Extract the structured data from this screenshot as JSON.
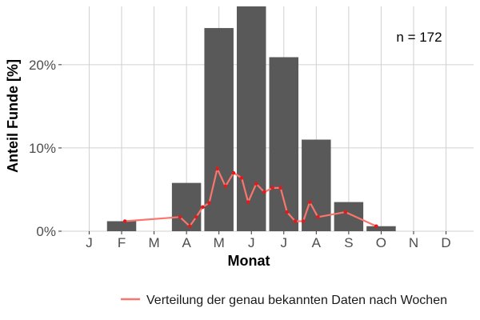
{
  "chart_data": {
    "type": "bar",
    "xlabel": "Monat",
    "ylabel": "Anteil Funde [%]",
    "categories": [
      "J",
      "F",
      "M",
      "A",
      "M",
      "J",
      "J",
      "A",
      "S",
      "O",
      "N",
      "D"
    ],
    "ylim": [
      0,
      27
    ],
    "yticks": [
      0,
      10,
      20
    ],
    "ytick_labels": [
      "0%",
      "10%",
      "20%"
    ],
    "grid": true,
    "annotation": "n = 172",
    "bar_color": "#595959",
    "series": [
      {
        "type": "bar",
        "values": [
          0,
          1.2,
          0,
          5.8,
          24.4,
          27.3,
          20.9,
          11.0,
          3.5,
          0.6,
          0,
          0
        ]
      },
      {
        "type": "line",
        "name": "Verteilung der genau bekannten Daten nach Wochen",
        "color": "#f8766d",
        "point_color": "#e31a1c",
        "points": [
          {
            "x": 2.1,
            "y": 1.2
          },
          {
            "x": 3.8,
            "y": 1.7
          },
          {
            "x": 4.1,
            "y": 0.6
          },
          {
            "x": 4.3,
            "y": 1.7
          },
          {
            "x": 4.5,
            "y": 2.9
          },
          {
            "x": 4.7,
            "y": 3.4
          },
          {
            "x": 4.95,
            "y": 7.5
          },
          {
            "x": 5.2,
            "y": 5.4
          },
          {
            "x": 5.45,
            "y": 7.0
          },
          {
            "x": 5.7,
            "y": 6.4
          },
          {
            "x": 5.9,
            "y": 3.5
          },
          {
            "x": 6.15,
            "y": 5.7
          },
          {
            "x": 6.4,
            "y": 4.7
          },
          {
            "x": 6.65,
            "y": 5.2
          },
          {
            "x": 6.9,
            "y": 5.2
          },
          {
            "x": 7.1,
            "y": 2.3
          },
          {
            "x": 7.35,
            "y": 1.2
          },
          {
            "x": 7.6,
            "y": 1.2
          },
          {
            "x": 7.8,
            "y": 3.5
          },
          {
            "x": 8.05,
            "y": 1.7
          },
          {
            "x": 8.9,
            "y": 2.3
          },
          {
            "x": 9.85,
            "y": 0.6
          }
        ]
      }
    ],
    "legend": {
      "position": "bottom",
      "label": "Verteilung der genau bekannten Daten nach Wochen"
    }
  }
}
